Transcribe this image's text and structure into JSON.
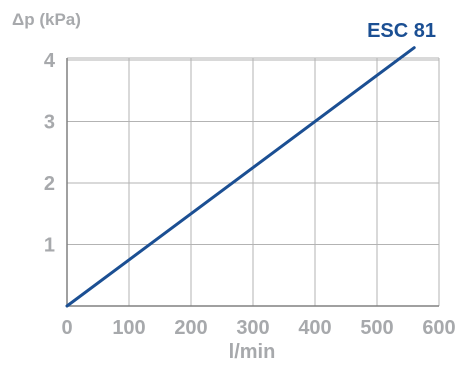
{
  "chart_data": {
    "type": "line",
    "title": "ESC 81",
    "xlabel": "l/min",
    "ylabel": "Δp (kPa)",
    "xlim": [
      0,
      600
    ],
    "ylim": [
      0,
      4.2
    ],
    "x_ticks": [
      "0",
      "100",
      "200",
      "300",
      "400",
      "500",
      "600"
    ],
    "y_ticks": [
      "1",
      "2",
      "3",
      "4"
    ],
    "grid": true,
    "series": [
      {
        "x": [
          0,
          560
        ],
        "y": [
          0,
          4.2
        ]
      }
    ],
    "colors": {
      "line": "#1b4f93",
      "title": "#1b4f93",
      "grid": "#b3b3b3",
      "axis": "#808080",
      "labels": "#a7a9ac"
    }
  }
}
